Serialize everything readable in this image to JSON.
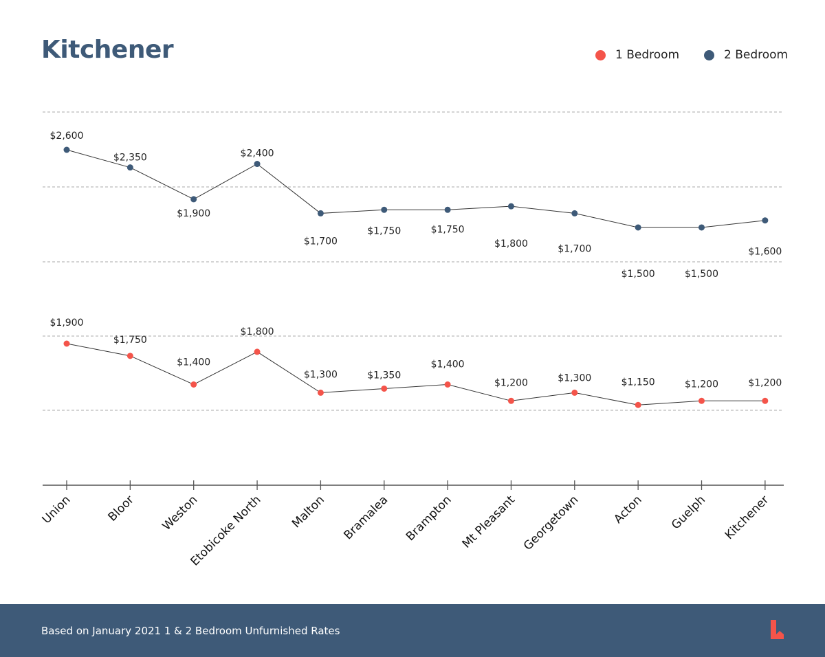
{
  "chart_data": {
    "type": "line",
    "title": "Kitchener",
    "categories": [
      "Union",
      "Bloor",
      "Weston",
      "Etobicoke  North",
      "Malton",
      "Bramalea",
      "Brampton",
      "Mt Pleasant",
      "Georgetown",
      "Acton",
      "Guelph",
      "Kitchener"
    ],
    "series": [
      {
        "name": "1 Bedroom",
        "color": "#f4544a",
        "values": [
          1900,
          1750,
          1400,
          1800,
          1300,
          1350,
          1400,
          1200,
          1300,
          1150,
          1200,
          1200
        ],
        "labels": [
          "$1,900",
          "$1,750",
          "$1,400",
          "$1,800",
          "$1,300",
          "$1,350",
          "$1,400",
          "$1,200",
          "$1,300",
          "$1,150",
          "$1,200",
          "$1,200"
        ]
      },
      {
        "name": "2 Bedroom",
        "color": "#3e5a78",
        "values": [
          2600,
          2350,
          1900,
          2400,
          1700,
          1750,
          1750,
          1800,
          1700,
          1500,
          1500,
          1600
        ],
        "labels": [
          "$2,600",
          "$2,350",
          "$1,900",
          "$2,400",
          "$1,700",
          "$1,750",
          "$1,750",
          "$1,800",
          "$1,700",
          "$1,500",
          "$1,500",
          "$1,600"
        ]
      }
    ],
    "legend_position": "top-right",
    "grid": true,
    "xlabel": "",
    "ylabel": ""
  },
  "footer": {
    "note": "Based on January 2021  1 & 2 Bedroom Unfurnished Rates",
    "logo_letter": "L"
  }
}
